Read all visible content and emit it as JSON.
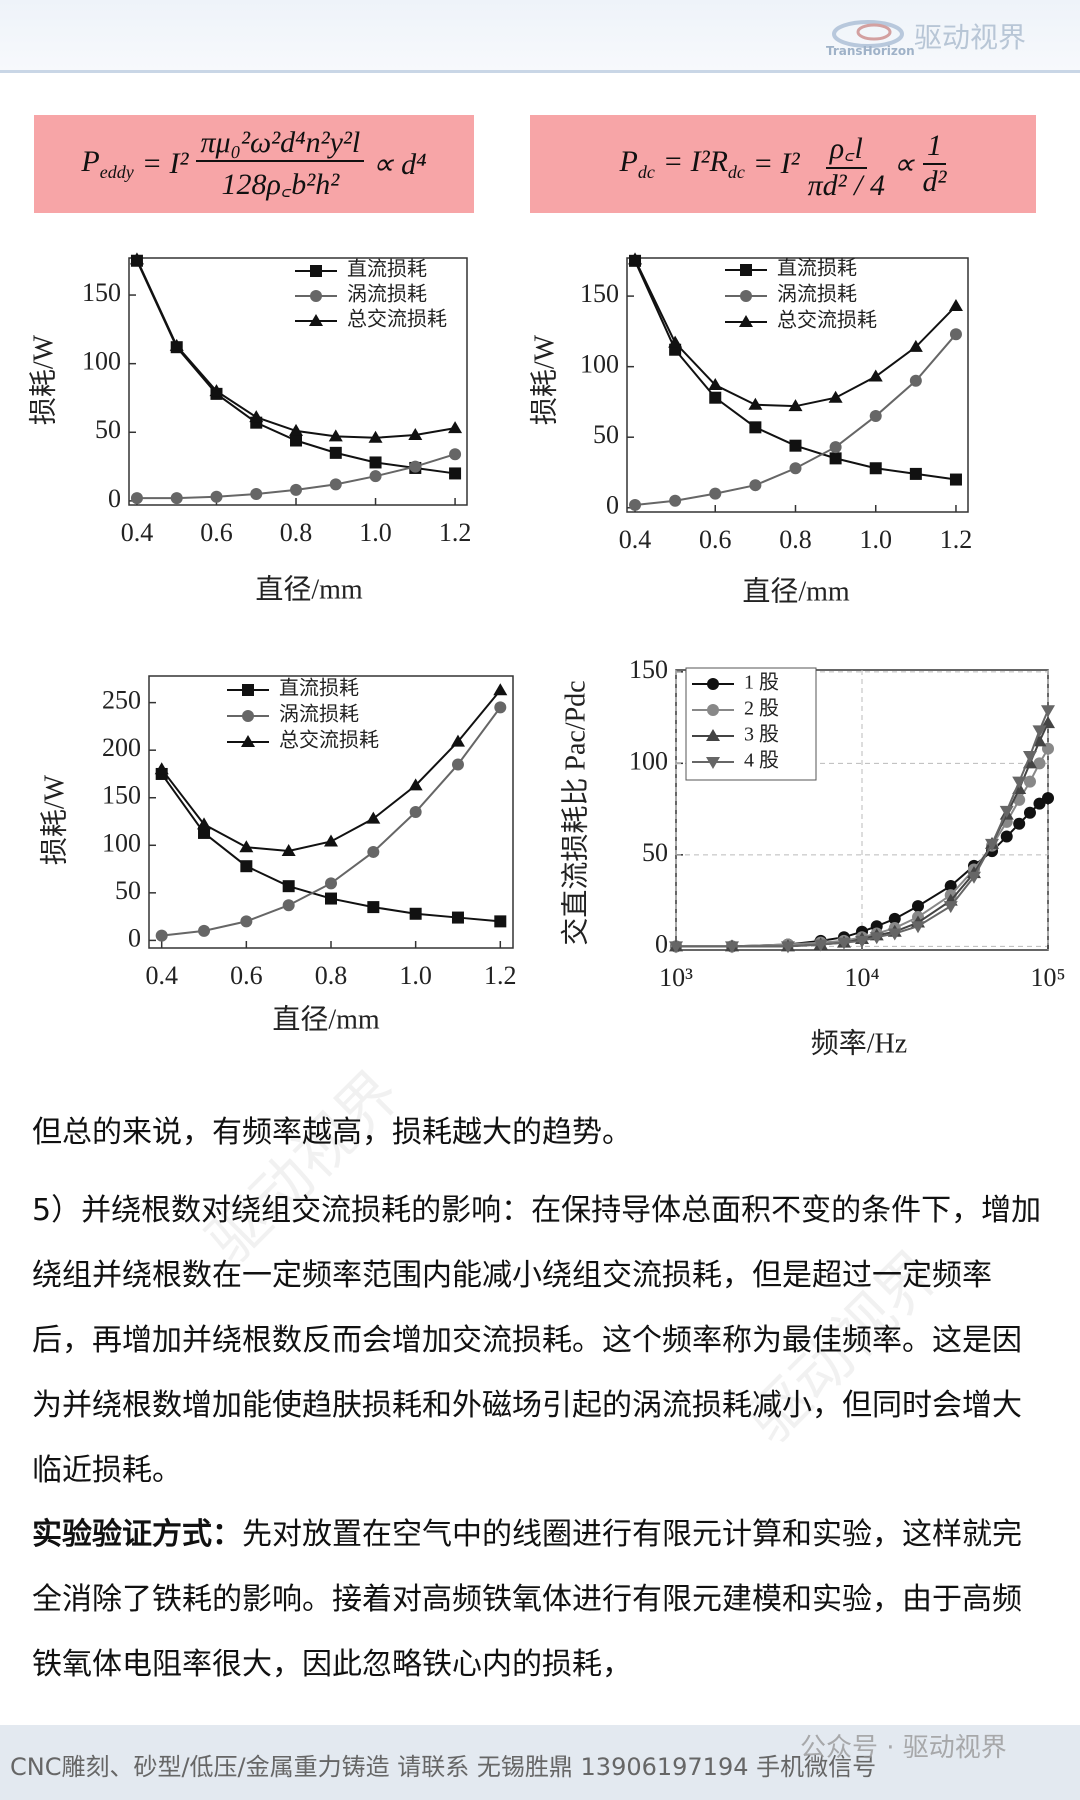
{
  "header": {
    "logo_text": "TransHorizon",
    "brand": "驱动视界"
  },
  "formulas": [
    {
      "lhs": "P",
      "lhs_sub": "eddy",
      "mid": "= I²",
      "num": "πμ₀²ω²d⁴n²y²l",
      "den": "128ρ꜀b²h²",
      "rhs": "∝ d⁴"
    },
    {
      "lhs": "P",
      "lhs_sub": "dc",
      "mid": "= I²R",
      "mid_sub": "dc",
      "mid2": "= I²",
      "num": "ρ꜀l",
      "den": "πd² / 4",
      "rhs": "∝",
      "rhs_num": "1",
      "rhs_den": "d²"
    }
  ],
  "chart_data": [
    {
      "type": "line",
      "xlabel": "直径/mm",
      "ylabel": "损耗/W",
      "x": [
        0.4,
        0.5,
        0.6,
        0.7,
        0.8,
        0.9,
        1.0,
        1.1,
        1.2
      ],
      "xlim": [
        0.38,
        1.23
      ],
      "ylim": [
        -3,
        177
      ],
      "xticks": [
        0.4,
        0.6,
        0.8,
        {
          "value": 1,
          "label": "1.0"
        },
        1.2
      ],
      "yticks": [
        0,
        50,
        100,
        150
      ],
      "grid": false,
      "series": [
        {
          "name": "直流损耗",
          "color": "#111111",
          "marker": "square",
          "values": [
            175,
            112,
            78,
            57,
            44,
            35,
            28,
            24,
            20
          ]
        },
        {
          "name": "涡流损耗",
          "color": "#666666",
          "marker": "circle",
          "values": [
            2,
            2,
            3,
            5,
            8,
            12,
            18,
            25,
            34
          ]
        },
        {
          "name": "总交流损耗",
          "color": "#111111",
          "marker": "triangle",
          "values": [
            176,
            113,
            80,
            61,
            51,
            47,
            46,
            48,
            53
          ]
        }
      ]
    },
    {
      "type": "line",
      "xlabel": "直径/mm",
      "ylabel": "损耗/W",
      "x": [
        0.4,
        0.5,
        0.6,
        0.7,
        0.8,
        0.9,
        1.0,
        1.1,
        1.2
      ],
      "xlim": [
        0.38,
        1.23
      ],
      "ylim": [
        -3,
        177
      ],
      "xticks": [
        0.4,
        0.6,
        0.8,
        {
          "value": 1,
          "label": "1.0"
        },
        1.2
      ],
      "yticks": [
        0,
        50,
        100,
        150
      ],
      "grid": false,
      "series": [
        {
          "name": "直流损耗",
          "color": "#111111",
          "marker": "square",
          "values": [
            175,
            112,
            78,
            57,
            44,
            35,
            28,
            24,
            20
          ]
        },
        {
          "name": "涡流损耗",
          "color": "#666666",
          "marker": "circle",
          "values": [
            2,
            5,
            10,
            16,
            28,
            43,
            65,
            90,
            123
          ]
        },
        {
          "name": "总交流损耗",
          "color": "#111111",
          "marker": "triangle",
          "values": [
            176,
            117,
            87,
            73,
            72,
            78,
            93,
            114,
            143
          ]
        }
      ]
    },
    {
      "type": "line",
      "xlabel": "直径/mm",
      "ylabel": "损耗/W",
      "x": [
        0.4,
        0.5,
        0.6,
        0.7,
        0.8,
        0.9,
        1.0,
        1.1,
        1.2
      ],
      "xlim": [
        0.37,
        1.23
      ],
      "ylim": [
        -8,
        278
      ],
      "xticks": [
        0.4,
        0.6,
        0.8,
        {
          "value": 1,
          "label": "1.0"
        },
        1.2
      ],
      "yticks": [
        0,
        50,
        100,
        150,
        200,
        250
      ],
      "grid": false,
      "series": [
        {
          "name": "直流损耗",
          "color": "#111111",
          "marker": "square",
          "values": [
            175,
            113,
            78,
            57,
            44,
            35,
            28,
            24,
            20
          ]
        },
        {
          "name": "涡流损耗",
          "color": "#666666",
          "marker": "circle",
          "values": [
            5,
            10,
            20,
            37,
            60,
            93,
            135,
            185,
            245
          ]
        },
        {
          "name": "总交流损耗",
          "color": "#111111",
          "marker": "triangle",
          "values": [
            180,
            122,
            98,
            94,
            104,
            128,
            163,
            209,
            263
          ]
        }
      ]
    },
    {
      "type": "line",
      "xlabel": "频率/Hz",
      "ylabel": "交直流损耗比 Pac/Pdc",
      "xscale": "log",
      "x": [
        1000,
        2000,
        4000,
        6000,
        8000,
        10000,
        12000,
        15000,
        20000,
        30000,
        40000,
        50000,
        60000,
        70000,
        80000,
        90000,
        100000
      ],
      "xlim": [
        1000,
        100000
      ],
      "ylim": [
        -2,
        151
      ],
      "xticks": [
        {
          "value": 1000,
          "label": "10³"
        },
        {
          "value": 10000,
          "label": "10⁴"
        },
        {
          "value": 100000,
          "label": "10⁵"
        }
      ],
      "yticks": [
        0,
        50,
        100,
        150
      ],
      "grid": true,
      "series": [
        {
          "name": "1 股",
          "color": "#111111",
          "marker": "circle",
          "values": [
            0,
            0,
            1,
            3,
            5,
            8,
            11,
            15,
            22,
            33,
            44,
            52,
            60,
            67,
            73,
            78,
            81
          ]
        },
        {
          "name": "2 股",
          "color": "#888888",
          "marker": "circle",
          "values": [
            0,
            0,
            1,
            2,
            3,
            5,
            7,
            10,
            16,
            28,
            42,
            55,
            68,
            80,
            90,
            100,
            108
          ]
        },
        {
          "name": "3 股",
          "color": "#444444",
          "marker": "triangle",
          "values": [
            0,
            0,
            0,
            1,
            2,
            4,
            6,
            8,
            13,
            25,
            40,
            56,
            72,
            86,
            100,
            112,
            122
          ]
        },
        {
          "name": "4 股",
          "color": "#666666",
          "marker": "tri-down",
          "values": [
            0,
            0,
            0,
            1,
            2,
            3,
            5,
            7,
            11,
            22,
            38,
            56,
            74,
            90,
            104,
            118,
            129
          ]
        }
      ]
    }
  ],
  "paragraphs": [
    {
      "text": "但总的来说，有频率越高，损耗越大的趋势。"
    },
    {
      "text": "5）并绕根数对绕组交流损耗的影响：在保持导体总面积不变的条件下，增加绕组并绕根数在一定频率范围内能减小绕组交流损耗，但是超过一定频率后，再增加并绕根数反而会增加交流损耗。这个频率称为最佳频率。这是因为并绕根数增加能使趋肤损耗和外磁场引起的涡流损耗减小，但同时会增大临近损耗。"
    },
    {
      "bold": "实验验证方式：",
      "text": "先对放置在空气中的线圈进行有限元计算和实验，这样就完全消除了铁耗的影响。接着对高频铁氧体进行有限元建模和实验，由于高频铁氧体电阻率很大，因此忽略铁心内的损耗，"
    }
  ],
  "footer": {
    "text": "CNC雕刻、砂型/低压/金属重力铸造 请联系 无锡胜鼎 13906197194 手机微信号",
    "watermark": "公众号 · 驱动视界"
  }
}
